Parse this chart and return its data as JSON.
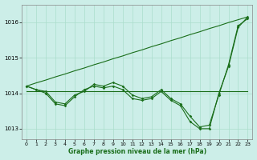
{
  "title": "Graphe pression niveau de la mer (hPa)",
  "background_color": "#cceee8",
  "grid_color": "#aaddcc",
  "line_color": "#1a6e1a",
  "xlim": [
    -0.5,
    23.5
  ],
  "ylim": [
    1012.7,
    1016.5
  ],
  "yticks": [
    1013,
    1014,
    1015,
    1016
  ],
  "xticks": [
    0,
    1,
    2,
    3,
    4,
    5,
    6,
    7,
    8,
    9,
    10,
    11,
    12,
    13,
    14,
    15,
    16,
    17,
    18,
    19,
    20,
    21,
    22,
    23
  ],
  "series_zigzag": [
    1014.2,
    1014.1,
    1014.0,
    1013.7,
    1013.65,
    1013.9,
    1014.1,
    1014.2,
    1014.15,
    1014.2,
    1014.1,
    1013.85,
    1013.8,
    1013.85,
    1014.05,
    1013.8,
    1013.65,
    1013.2,
    1013.0,
    1013.0,
    1014.0,
    1014.75,
    1015.85,
    1016.15
  ],
  "series_zigzag2": [
    1014.2,
    1014.1,
    1014.05,
    1013.75,
    1013.7,
    1013.95,
    1014.05,
    1014.25,
    1014.2,
    1014.3,
    1014.2,
    1013.95,
    1013.85,
    1013.9,
    1014.1,
    1013.85,
    1013.7,
    1013.35,
    1013.05,
    1013.1,
    1013.95,
    1014.8,
    1015.9,
    1016.1
  ],
  "series_straight": [
    1014.2,
    1014.29,
    1014.37,
    1014.46,
    1014.54,
    1014.63,
    1014.71,
    1014.8,
    1014.88,
    1014.97,
    1015.05,
    1015.14,
    1015.22,
    1015.31,
    1015.39,
    1015.48,
    1015.56,
    1015.65,
    1015.73,
    1015.82,
    1015.9,
    1015.99,
    1016.07,
    1016.15
  ],
  "series_flat": [
    1014.05,
    1014.05,
    1014.05,
    1014.05,
    1014.05,
    1014.05,
    1014.05,
    1014.05,
    1014.05,
    1014.05,
    1014.05,
    1014.05,
    1014.05,
    1014.05,
    1014.05,
    1014.05,
    1014.05,
    1014.05,
    1014.05,
    1014.05,
    1014.05,
    1014.05,
    1014.05,
    1014.05
  ]
}
